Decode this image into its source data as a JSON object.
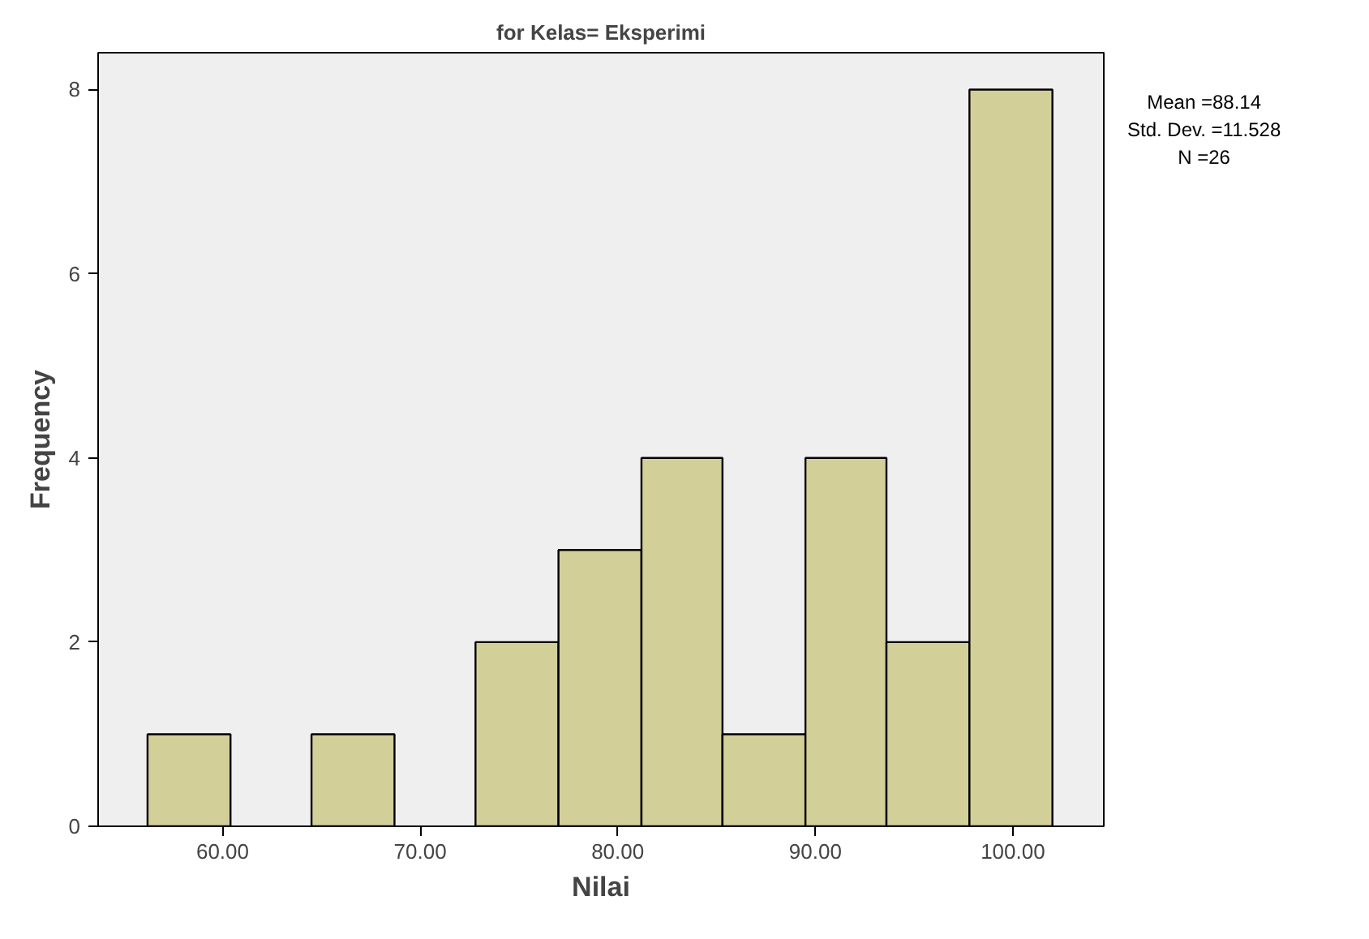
{
  "chart_data": {
    "type": "histogram",
    "title": "for Kelas= Eksperimi",
    "xlabel": "Nilai",
    "ylabel": "Frequency",
    "bins": [
      56.2,
      60.4,
      64.5,
      68.7,
      72.8,
      77.0,
      81.2,
      85.3,
      89.5,
      93.6,
      97.8,
      102.0
    ],
    "values": [
      1,
      0,
      1,
      0,
      2,
      3,
      4,
      1,
      4,
      2,
      8
    ],
    "color": "#d3cf98",
    "xlim": [
      53.7,
      104.6
    ],
    "xticks": [
      {
        "value": 60,
        "label": "60.00"
      },
      {
        "value": 70,
        "label": "70.00"
      },
      {
        "value": 80,
        "label": "80.00"
      },
      {
        "value": 90,
        "label": "90.00"
      },
      {
        "value": 100,
        "label": "100.00"
      }
    ],
    "ylim": [
      0,
      8.4
    ],
    "yticks": [
      0,
      2,
      4,
      6,
      8
    ],
    "grid": false,
    "annotations": [
      "Mean =88.14\nStd. Dev. =11.528\nN =26"
    ]
  }
}
